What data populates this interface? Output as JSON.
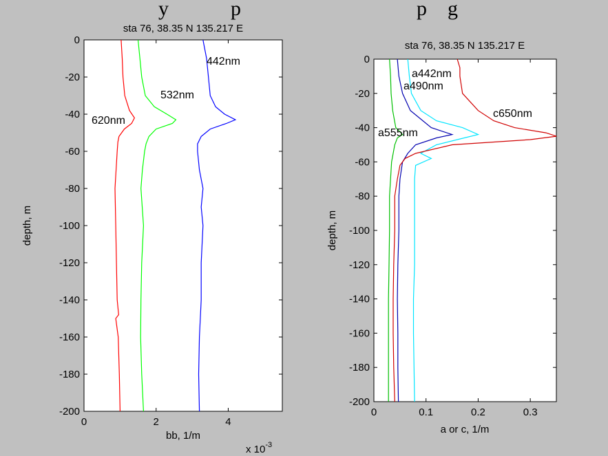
{
  "figure": {
    "caption_fragment": "y            p                                  p    g",
    "background": "#c0c0c0"
  },
  "chart_data": [
    {
      "type": "line",
      "title": "sta 76, 38.35 N 135.217 E",
      "xlabel": "bb, 1/m",
      "ylabel": "depth, m",
      "x_multiplier": "x 10",
      "x_multiplier_exp": "-3",
      "xlim": [
        0,
        0.0055
      ],
      "ylim": [
        -200,
        0
      ],
      "xticks": [
        0,
        0.002,
        0.004
      ],
      "xtick_labels": [
        "0",
        "2",
        "4"
      ],
      "yticks": [
        0,
        -20,
        -40,
        -60,
        -80,
        -100,
        -120,
        -140,
        -160,
        -180,
        -200
      ],
      "ytick_labels": [
        "0",
        "-20",
        "-40",
        "-60",
        "-80",
        "-100",
        "-120",
        "-140",
        "-160",
        "-180",
        "-200"
      ],
      "series": [
        {
          "name": "620nm",
          "color": "#ff0000",
          "depth": [
            0,
            -10,
            -20,
            -30,
            -38,
            -42,
            -45,
            -48,
            -52,
            -55,
            -60,
            -70,
            -80,
            -100,
            -120,
            -140,
            -148,
            -150,
            -160,
            -180,
            -200
          ],
          "values": [
            0.00103,
            0.00106,
            0.00108,
            0.00113,
            0.00126,
            0.0014,
            0.00132,
            0.00112,
            0.00097,
            0.00094,
            0.00092,
            0.00089,
            0.00086,
            0.00088,
            0.0009,
            0.00092,
            0.00096,
            0.00088,
            0.00095,
            0.00098,
            0.001
          ]
        },
        {
          "name": "532nm",
          "color": "#00ff00",
          "depth": [
            0,
            -10,
            -20,
            -30,
            -36,
            -40,
            -43,
            -45,
            -48,
            -52,
            -56,
            -60,
            -70,
            -80,
            -100,
            -120,
            -140,
            -160,
            -180,
            -200
          ],
          "values": [
            0.0015,
            0.00155,
            0.0016,
            0.0017,
            0.00195,
            0.0023,
            0.00255,
            0.00245,
            0.002,
            0.0018,
            0.00172,
            0.00168,
            0.00162,
            0.00158,
            0.00165,
            0.0016,
            0.00158,
            0.00157,
            0.0016,
            0.00165
          ]
        },
        {
          "name": "442nm",
          "color": "#0000ff",
          "depth": [
            0,
            -5,
            -10,
            -20,
            -30,
            -36,
            -40,
            -43,
            -45,
            -48,
            -52,
            -56,
            -60,
            -70,
            -80,
            -90,
            -100,
            -120,
            -140,
            -160,
            -180,
            -200
          ],
          "values": [
            0.0033,
            0.00335,
            0.0034,
            0.00345,
            0.0035,
            0.00365,
            0.0039,
            0.0042,
            0.00395,
            0.0035,
            0.00325,
            0.00315,
            0.00315,
            0.0032,
            0.0033,
            0.00325,
            0.0033,
            0.00325,
            0.00325,
            0.0032,
            0.00318,
            0.0032
          ]
        }
      ],
      "annotations": [
        "620nm",
        "532nm",
        "442nm"
      ]
    },
    {
      "type": "line",
      "title": "sta 76, 38.35 N 135.217 E",
      "xlabel": "a or c, 1/m",
      "ylabel": "depth, m",
      "xlim": [
        0,
        0.35
      ],
      "ylim": [
        -200,
        0
      ],
      "xticks": [
        0,
        0.1,
        0.2,
        0.3
      ],
      "xtick_labels": [
        "0",
        "0.1",
        "0.2",
        "0.3"
      ],
      "yticks": [
        0,
        -20,
        -40,
        -60,
        -80,
        -100,
        -120,
        -140,
        -160,
        -180,
        -200
      ],
      "ytick_labels": [
        "0",
        "-20",
        "-40",
        "-60",
        "-80",
        "-100",
        "-120",
        "-140",
        "-160",
        "-180",
        "-200"
      ],
      "series": [
        {
          "name": "a555nm",
          "color": "#00c000",
          "depth": [
            0,
            -10,
            -20,
            -30,
            -40,
            -44,
            -46,
            -50,
            -55,
            -60,
            -70,
            -80,
            -100,
            -120,
            -140,
            -160,
            -180,
            -200
          ],
          "values": [
            0.03,
            0.032,
            0.033,
            0.036,
            0.042,
            0.055,
            0.045,
            0.04,
            0.037,
            0.034,
            0.032,
            0.03,
            0.03,
            0.029,
            0.028,
            0.028,
            0.028,
            0.028
          ]
        },
        {
          "name": "a442nm",
          "color": "#00e5ff",
          "depth": [
            0,
            -10,
            -20,
            -30,
            -36,
            -40,
            -44,
            -47,
            -50,
            -55,
            -58,
            -62,
            -70,
            -80,
            -100,
            -120,
            -140,
            -160,
            -180,
            -200
          ],
          "values": [
            0.065,
            0.068,
            0.072,
            0.09,
            0.12,
            0.17,
            0.2,
            0.16,
            0.12,
            0.09,
            0.11,
            0.08,
            0.078,
            0.078,
            0.078,
            0.078,
            0.076,
            0.076,
            0.077,
            0.078
          ]
        },
        {
          "name": "a490nm",
          "color": "#0000b0",
          "depth": [
            0,
            -10,
            -20,
            -30,
            -40,
            -44,
            -46,
            -50,
            -55,
            -60,
            -70,
            -80,
            -100,
            -120,
            -140,
            -160,
            -180,
            -200
          ],
          "values": [
            0.045,
            0.048,
            0.055,
            0.07,
            0.11,
            0.15,
            0.12,
            0.08,
            0.065,
            0.055,
            0.05,
            0.048,
            0.048,
            0.046,
            0.045,
            0.046,
            0.046,
            0.047
          ]
        },
        {
          "name": "c650nm",
          "color": "#d00000",
          "depth": [
            0,
            -5,
            -10,
            -20,
            -30,
            -36,
            -40,
            -43,
            -45,
            -47,
            -50,
            -55,
            -58,
            -62,
            -70,
            -80,
            -100,
            -120,
            -140,
            -160,
            -180,
            -200
          ],
          "values": [
            0.16,
            0.165,
            0.165,
            0.17,
            0.2,
            0.23,
            0.27,
            0.33,
            0.35,
            0.3,
            0.15,
            0.08,
            0.06,
            0.05,
            0.045,
            0.04,
            0.04,
            0.038,
            0.037,
            0.037,
            0.038,
            0.04
          ]
        }
      ],
      "annotations": [
        "a442nm",
        "a490nm",
        "a555nm",
        "c650nm"
      ]
    }
  ]
}
